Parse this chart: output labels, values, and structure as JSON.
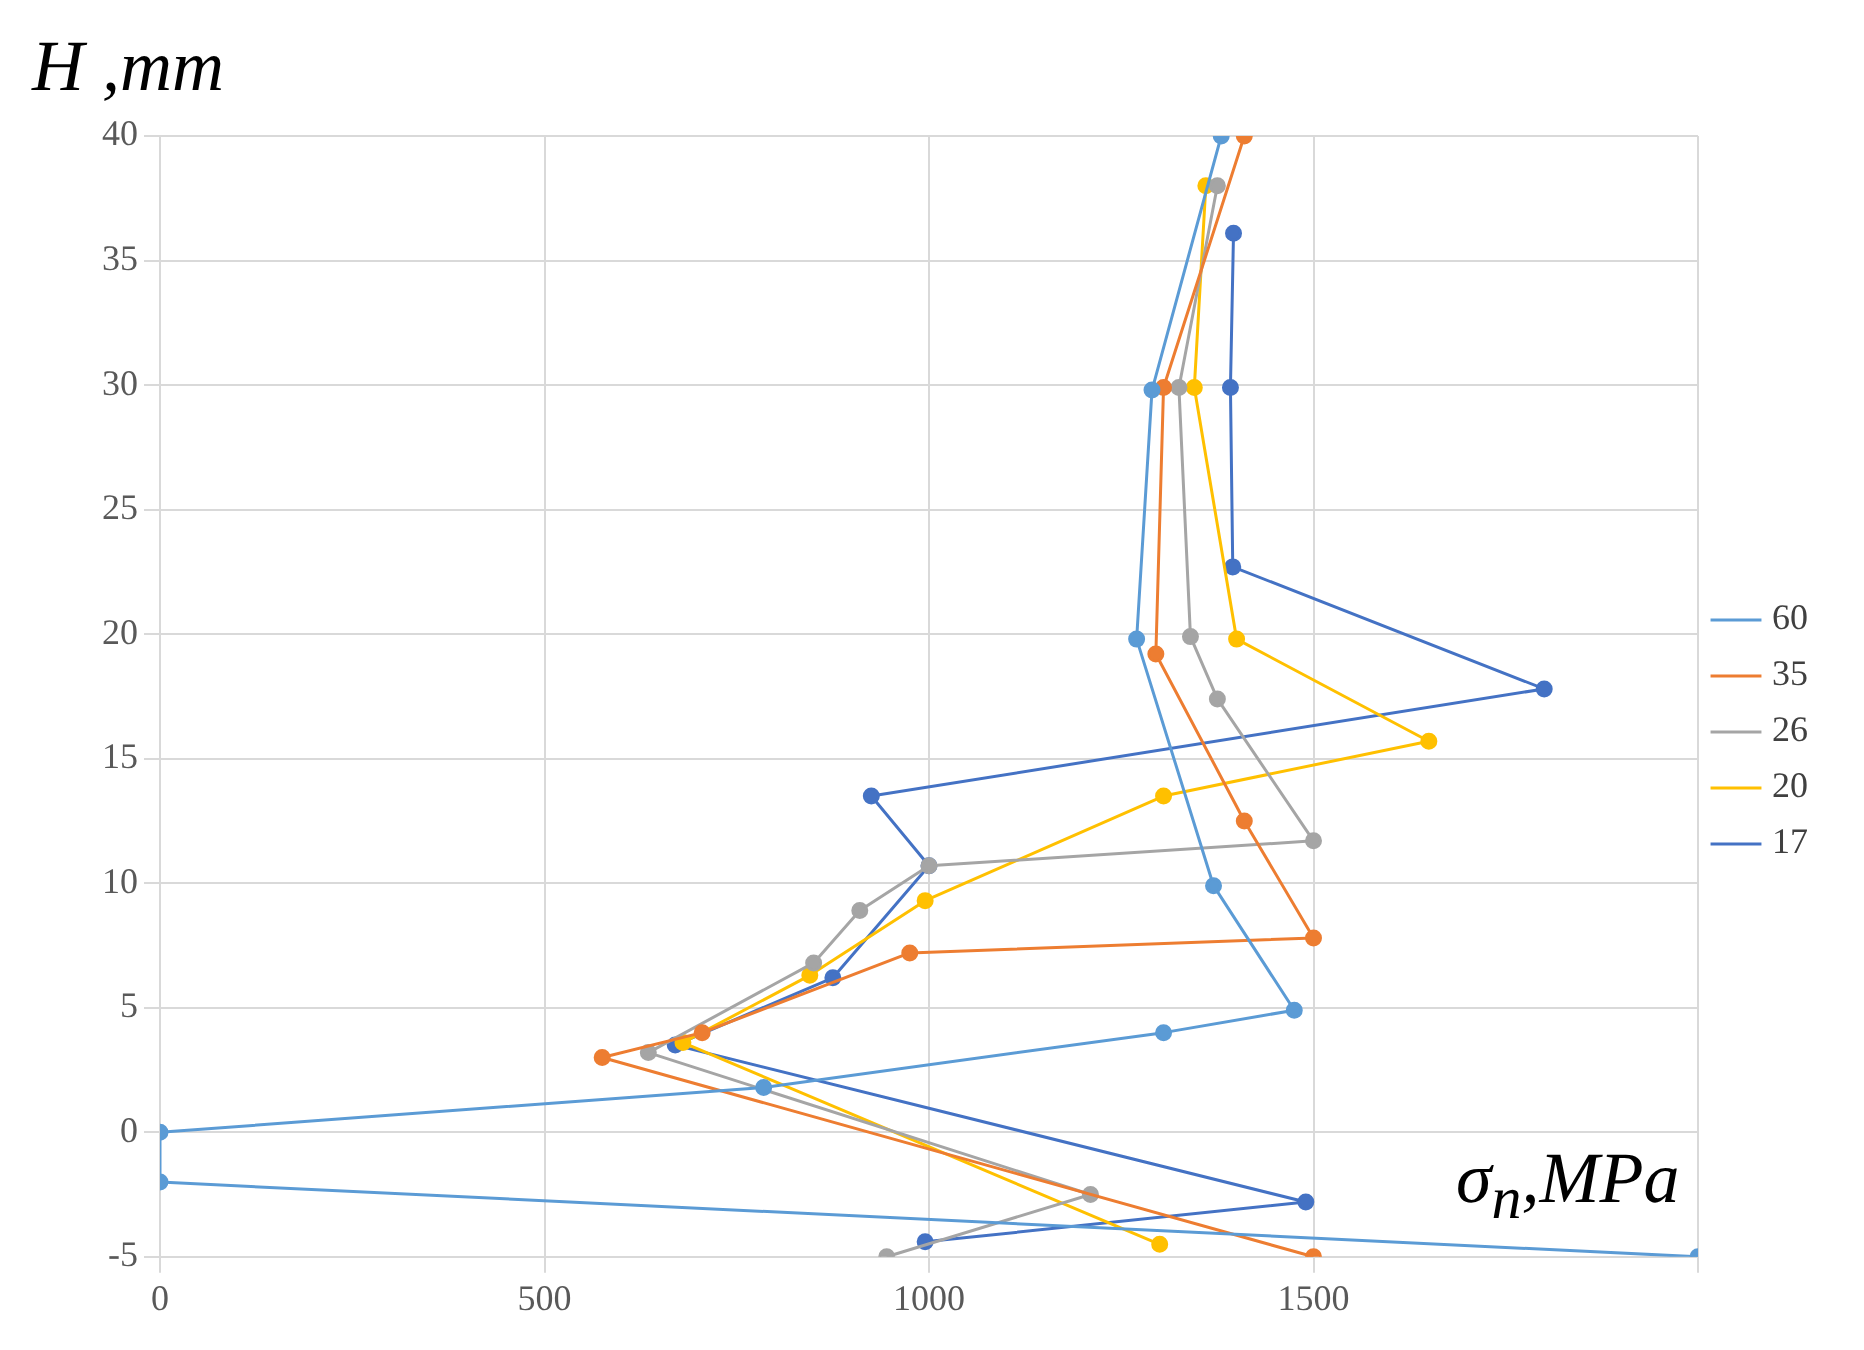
{
  "chart_data": {
    "type": "line",
    "xlabel": "σ$_{n}$,MPa",
    "ylabel": "H ,mm",
    "xlim": [
      0,
      2000
    ],
    "xticks": [
      0,
      500,
      1000,
      1500,
      {
        "value": 2000,
        "label": null
      }
    ],
    "ylim": [
      -5,
      40
    ],
    "yticks": [
      -5,
      0,
      5,
      10,
      15,
      20,
      25,
      30,
      35,
      40
    ],
    "grid": true,
    "legend": "right",
    "marker": "circle",
    "line_style": "solid",
    "series": [
      {
        "name": "60",
        "color": "#5b9bd5",
        "x": [
          1380,
          1290,
          1270,
          1370,
          1475,
          1305,
          785,
          0,
          0,
          2000
        ],
        "values": [
          40,
          29.8,
          19.8,
          9.9,
          4.9,
          4,
          1.8,
          0,
          -2,
          -5
        ]
      },
      {
        "name": "35",
        "color": "#ed7d31",
        "x": [
          1410,
          1305,
          1295,
          1410,
          1500,
          975,
          705,
          575,
          1500
        ],
        "values": [
          40,
          29.9,
          19.2,
          12.5,
          7.8,
          7.2,
          4,
          3,
          -5
        ]
      },
      {
        "name": "26",
        "color": "#a5a5a5",
        "x": [
          1375,
          1325,
          1340,
          1375,
          1500,
          1000,
          910,
          850,
          635,
          1210,
          945
        ],
        "values": [
          38,
          29.9,
          19.9,
          17.4,
          11.7,
          10.7,
          8.9,
          6.8,
          3.2,
          -2.5,
          -5
        ]
      },
      {
        "name": "20",
        "color": "#ffc000",
        "x": [
          1360,
          1345,
          1400,
          1650,
          1305,
          995,
          845,
          680,
          1300
        ],
        "values": [
          38,
          29.9,
          19.8,
          15.7,
          13.5,
          9.3,
          6.3,
          3.6,
          -4.5
        ]
      },
      {
        "name": "17",
        "color": "#4472c4",
        "x": [
          1396,
          1392,
          1395,
          1800,
          925,
          1000,
          875,
          670,
          1490,
          995
        ],
        "values": [
          36.1,
          29.9,
          22.7,
          17.8,
          13.5,
          10.7,
          6.2,
          3.5,
          -2.8,
          -4.4
        ]
      }
    ]
  }
}
